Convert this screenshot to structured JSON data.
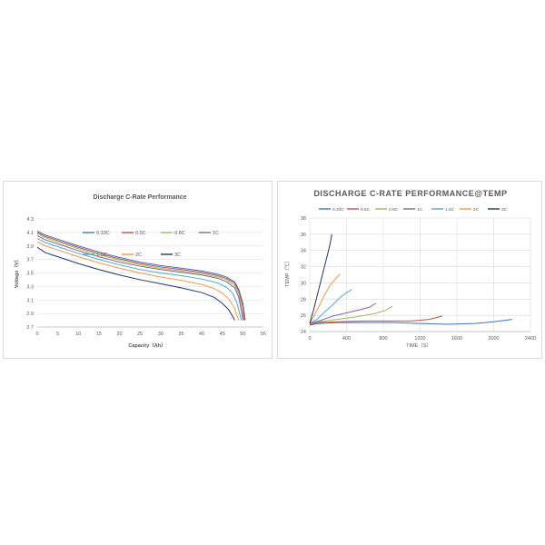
{
  "chart_data": [
    {
      "type": "line",
      "title": "Discharge C-Rate Performance",
      "xlabel": "Capacity（Ah）",
      "ylabel": "Voltage（V）",
      "xlim": [
        0,
        55
      ],
      "ylim": [
        2.7,
        4.3
      ],
      "x_ticks": [
        "0",
        "5",
        "10",
        "15",
        "20",
        "25",
        "30",
        "35",
        "40",
        "45",
        "50",
        "55"
      ],
      "y_ticks": [
        "2.7",
        "2.9",
        "3.1",
        "3.3",
        "3.5",
        "3.7",
        "3.9",
        "4.1",
        "4.3"
      ],
      "grid": "horizontal",
      "legend": "inside-top-right",
      "series": [
        {
          "name": "0.33C",
          "color": "#4472c4",
          "points": [
            [
              0,
              4.12
            ],
            [
              2,
              4.06
            ],
            [
              5,
              4.0
            ],
            [
              10,
              3.9
            ],
            [
              15,
              3.81
            ],
            [
              20,
              3.73
            ],
            [
              25,
              3.66
            ],
            [
              30,
              3.61
            ],
            [
              35,
              3.57
            ],
            [
              40,
              3.53
            ],
            [
              44,
              3.48
            ],
            [
              46,
              3.44
            ],
            [
              48,
              3.37
            ],
            [
              49,
              3.26
            ],
            [
              50,
              3.05
            ],
            [
              50.6,
              2.8
            ]
          ]
        },
        {
          "name": "0.5C",
          "color": "#c0504d",
          "points": [
            [
              0,
              4.1
            ],
            [
              2,
              4.04
            ],
            [
              5,
              3.98
            ],
            [
              10,
              3.88
            ],
            [
              15,
              3.79
            ],
            [
              20,
              3.71
            ],
            [
              25,
              3.64
            ],
            [
              30,
              3.59
            ],
            [
              35,
              3.55
            ],
            [
              40,
              3.51
            ],
            [
              44,
              3.46
            ],
            [
              46,
              3.42
            ],
            [
              48,
              3.35
            ],
            [
              49,
              3.23
            ],
            [
              50,
              3.0
            ],
            [
              50.4,
              2.8
            ]
          ]
        },
        {
          "name": "0.8C",
          "color": "#9bbb59",
          "points": [
            [
              0,
              4.08
            ],
            [
              2,
              4.02
            ],
            [
              5,
              3.96
            ],
            [
              10,
              3.86
            ],
            [
              15,
              3.77
            ],
            [
              20,
              3.69
            ],
            [
              25,
              3.62
            ],
            [
              30,
              3.57
            ],
            [
              35,
              3.53
            ],
            [
              40,
              3.49
            ],
            [
              44,
              3.44
            ],
            [
              46,
              3.4
            ],
            [
              48,
              3.32
            ],
            [
              49,
              3.19
            ],
            [
              49.8,
              2.95
            ],
            [
              50.2,
              2.8
            ]
          ]
        },
        {
          "name": "1C",
          "color": "#8064a2",
          "points": [
            [
              0,
              4.05
            ],
            [
              2,
              3.99
            ],
            [
              5,
              3.93
            ],
            [
              10,
              3.83
            ],
            [
              15,
              3.74
            ],
            [
              20,
              3.66
            ],
            [
              25,
              3.6
            ],
            [
              30,
              3.55
            ],
            [
              35,
              3.51
            ],
            [
              40,
              3.47
            ],
            [
              44,
              3.42
            ],
            [
              46,
              3.37
            ],
            [
              48,
              3.28
            ],
            [
              49,
              3.14
            ],
            [
              49.7,
              2.92
            ],
            [
              50,
              2.8
            ]
          ]
        },
        {
          "name": "1.5C",
          "color": "#4bacc6",
          "points": [
            [
              0,
              4.01
            ],
            [
              2,
              3.95
            ],
            [
              5,
              3.89
            ],
            [
              10,
              3.79
            ],
            [
              15,
              3.7
            ],
            [
              20,
              3.62
            ],
            [
              25,
              3.55
            ],
            [
              30,
              3.5
            ],
            [
              35,
              3.46
            ],
            [
              40,
              3.41
            ],
            [
              44,
              3.35
            ],
            [
              46,
              3.29
            ],
            [
              47.5,
              3.2
            ],
            [
              48.5,
              3.07
            ],
            [
              49.3,
              2.88
            ],
            [
              49.6,
              2.8
            ]
          ]
        },
        {
          "name": "2C",
          "color": "#f79646",
          "points": [
            [
              0,
              3.96
            ],
            [
              2,
              3.9
            ],
            [
              5,
              3.84
            ],
            [
              10,
              3.74
            ],
            [
              15,
              3.65
            ],
            [
              20,
              3.57
            ],
            [
              25,
              3.5
            ],
            [
              30,
              3.44
            ],
            [
              35,
              3.39
            ],
            [
              40,
              3.33
            ],
            [
              43,
              3.27
            ],
            [
              45,
              3.2
            ],
            [
              46.5,
              3.12
            ],
            [
              47.8,
              3.0
            ],
            [
              48.7,
              2.85
            ],
            [
              49,
              2.8
            ]
          ]
        },
        {
          "name": "3C",
          "color": "#1f3864",
          "points": [
            [
              0,
              3.88
            ],
            [
              2,
              3.8
            ],
            [
              5,
              3.74
            ],
            [
              10,
              3.64
            ],
            [
              15,
              3.55
            ],
            [
              20,
              3.47
            ],
            [
              25,
              3.4
            ],
            [
              30,
              3.34
            ],
            [
              35,
              3.28
            ],
            [
              40,
              3.21
            ],
            [
              43,
              3.14
            ],
            [
              45,
              3.05
            ],
            [
              46.5,
              2.96
            ],
            [
              47.5,
              2.86
            ],
            [
              48,
              2.8
            ]
          ]
        }
      ]
    },
    {
      "type": "line",
      "title": "DISCHARGE  C-RATE  PERFORMANCE@TEMP",
      "xlabel": "TIME（S）",
      "ylabel": "TEMP（℃）",
      "xlim": [
        0,
        2400
      ],
      "ylim": [
        24,
        38
      ],
      "x_ticks": [
        "0",
        "400",
        "800",
        "1200",
        "1600",
        "2000",
        "2400"
      ],
      "y_ticks": [
        "24",
        "26",
        "28",
        "30",
        "32",
        "34",
        "36",
        "38"
      ],
      "grid": "both",
      "legend": "top",
      "series": [
        {
          "name": "0.33C",
          "color": "#4472c4",
          "points": [
            [
              0,
              24.8
            ],
            [
              100,
              25.0
            ],
            [
              300,
              25.1
            ],
            [
              600,
              25.1
            ],
            [
              900,
              25.1
            ],
            [
              1200,
              25.0
            ],
            [
              1500,
              24.9
            ],
            [
              1800,
              25.0
            ],
            [
              2000,
              25.2
            ],
            [
              2200,
              25.5
            ]
          ]
        },
        {
          "name": "0.5C",
          "color": "#c0504d",
          "points": [
            [
              0,
              24.9
            ],
            [
              100,
              25.1
            ],
            [
              300,
              25.2
            ],
            [
              600,
              25.3
            ],
            [
              900,
              25.3
            ],
            [
              1100,
              25.3
            ],
            [
              1300,
              25.5
            ],
            [
              1440,
              25.9
            ]
          ]
        },
        {
          "name": "0.8C",
          "color": "#9bbb59",
          "points": [
            [
              0,
              25.0
            ],
            [
              100,
              25.2
            ],
            [
              300,
              25.5
            ],
            [
              500,
              25.8
            ],
            [
              700,
              26.2
            ],
            [
              820,
              26.6
            ],
            [
              900,
              27.1
            ]
          ]
        },
        {
          "name": "1C",
          "color": "#8064a2",
          "points": [
            [
              0,
              25.0
            ],
            [
              100,
              25.3
            ],
            [
              250,
              25.9
            ],
            [
              400,
              26.3
            ],
            [
              550,
              26.7
            ],
            [
              650,
              27.0
            ],
            [
              720,
              27.5
            ]
          ]
        },
        {
          "name": "1.5C",
          "color": "#4bacc6",
          "points": [
            [
              0,
              25.0
            ],
            [
              80,
              25.5
            ],
            [
              160,
              26.4
            ],
            [
              250,
              27.3
            ],
            [
              330,
              28.2
            ],
            [
              400,
              28.8
            ],
            [
              460,
              29.2
            ]
          ]
        },
        {
          "name": "2C",
          "color": "#f79646",
          "points": [
            [
              0,
              25.0
            ],
            [
              50,
              26.0
            ],
            [
              100,
              27.1
            ],
            [
              160,
              28.5
            ],
            [
              220,
              29.7
            ],
            [
              280,
              30.5
            ],
            [
              330,
              31.1
            ]
          ]
        },
        {
          "name": "3C",
          "color": "#1f3864",
          "points": [
            [
              0,
              25.0
            ],
            [
              40,
              26.6
            ],
            [
              80,
              28.4
            ],
            [
              120,
              30.2
            ],
            [
              160,
              32.0
            ],
            [
              200,
              33.8
            ],
            [
              225,
              35.0
            ],
            [
              240,
              36.0
            ]
          ]
        }
      ]
    }
  ]
}
